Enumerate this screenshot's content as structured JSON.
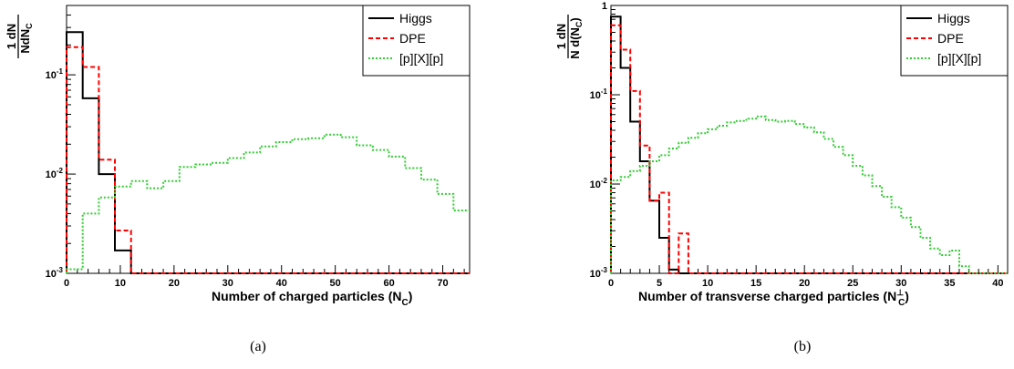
{
  "colors": {
    "higgs": "#000000",
    "dpe": "#ff0000",
    "bkg": "#33cc33"
  },
  "chart_data": [
    {
      "type": "line",
      "step": true,
      "y_scale": "log",
      "ylim": [
        0.001,
        0.5
      ],
      "xlim": [
        0,
        75
      ],
      "xlabel_main": "Number of charged particles (N",
      "xlabel_sub": "C",
      "xlabel_close": ")",
      "ylabel_num": "1 dN",
      "ylabel_den": "NdN",
      "ylabel_den_sub": "C",
      "x_ticks": [
        0,
        10,
        20,
        30,
        40,
        50,
        60,
        70
      ],
      "y_ticks": [
        {
          "v": 0.1,
          "base": "10",
          "exp": "-1"
        },
        {
          "v": 0.01,
          "base": "10",
          "exp": "-2"
        },
        {
          "v": 0.001,
          "base": "10",
          "exp": "-3"
        }
      ],
      "legend": [
        "Higgs",
        "DPE",
        "[p][X][p]"
      ],
      "caption": "(a)",
      "series": [
        {
          "name": "Higgs",
          "style": "solid",
          "edges": [
            0,
            3,
            6,
            9,
            12,
            75
          ],
          "values": [
            0.27,
            0.058,
            0.01,
            0.0017,
            0.001
          ]
        },
        {
          "name": "DPE",
          "style": "dashed",
          "edges": [
            0,
            3,
            6,
            9,
            12,
            75
          ],
          "values": [
            0.19,
            0.12,
            0.014,
            0.0027,
            0.001
          ]
        },
        {
          "name": "[p][X][p]",
          "style": "dotted",
          "edges": [
            0,
            3,
            6,
            9,
            12,
            15,
            18,
            21,
            24,
            27,
            30,
            33,
            36,
            39,
            42,
            45,
            48,
            51,
            54,
            57,
            60,
            63,
            66,
            69,
            72,
            75
          ],
          "values": [
            0.0011,
            0.004,
            0.0058,
            0.0075,
            0.0085,
            0.0072,
            0.0085,
            0.0118,
            0.0125,
            0.013,
            0.0145,
            0.0165,
            0.019,
            0.021,
            0.0225,
            0.023,
            0.025,
            0.0235,
            0.0195,
            0.0175,
            0.015,
            0.0115,
            0.0088,
            0.0063,
            0.0043
          ]
        }
      ]
    },
    {
      "type": "line",
      "step": true,
      "y_scale": "log",
      "ylim": [
        0.001,
        1
      ],
      "xlim": [
        0,
        41
      ],
      "xlabel_main": "Number of transverse charged particles (N",
      "xlabel_sub": "C",
      "xlabel_sup": "⊥",
      "xlabel_close": ")",
      "ylabel_num": "1  dN",
      "ylabel_den": "N d(N",
      "ylabel_den_sub": "C",
      "ylabel_den_close": ")",
      "x_ticks": [
        0,
        5,
        10,
        15,
        20,
        25,
        30,
        35,
        40
      ],
      "y_ticks": [
        {
          "v": 1,
          "base": "1",
          "exp": ""
        },
        {
          "v": 0.1,
          "base": "10",
          "exp": "-1"
        },
        {
          "v": 0.01,
          "base": "10",
          "exp": "-2"
        },
        {
          "v": 0.001,
          "base": "10",
          "exp": "-3"
        }
      ],
      "legend": [
        "Higgs",
        "DPE",
        "[p][X][p]"
      ],
      "caption": "(b)",
      "series": [
        {
          "name": "Higgs",
          "style": "solid",
          "edges": [
            0,
            1,
            2,
            3,
            4,
            5,
            6,
            7,
            41
          ],
          "values": [
            0.75,
            0.2,
            0.05,
            0.018,
            0.0065,
            0.0025,
            0.0011,
            0.001
          ]
        },
        {
          "name": "DPE",
          "style": "dashed",
          "edges": [
            0,
            1,
            2,
            3,
            4,
            5,
            6,
            7,
            8,
            41
          ],
          "values": [
            0.6,
            0.32,
            0.11,
            0.027,
            0.0065,
            0.008,
            0.001,
            0.0028,
            0.001
          ]
        },
        {
          "name": "[p][X][p]",
          "style": "dotted",
          "edges": [
            0,
            1,
            2,
            3,
            4,
            5,
            6,
            7,
            8,
            9,
            10,
            11,
            12,
            13,
            14,
            15,
            16,
            17,
            18,
            19,
            20,
            21,
            22,
            23,
            24,
            25,
            26,
            27,
            28,
            29,
            30,
            31,
            32,
            33,
            34,
            35,
            36,
            37,
            41
          ],
          "values": [
            0.011,
            0.012,
            0.014,
            0.016,
            0.018,
            0.021,
            0.025,
            0.029,
            0.033,
            0.037,
            0.041,
            0.045,
            0.049,
            0.051,
            0.054,
            0.057,
            0.052,
            0.05,
            0.051,
            0.047,
            0.043,
            0.038,
            0.032,
            0.026,
            0.021,
            0.016,
            0.0125,
            0.0095,
            0.0072,
            0.0055,
            0.0042,
            0.0033,
            0.0025,
            0.0019,
            0.0016,
            0.0018,
            0.0012,
            0.001
          ]
        }
      ]
    }
  ]
}
